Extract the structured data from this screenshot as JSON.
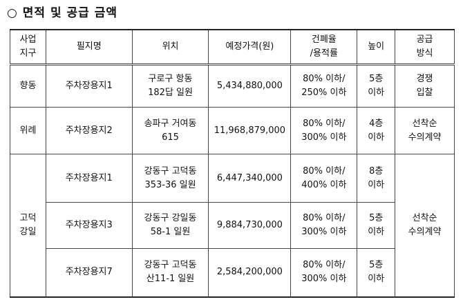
{
  "title": "○ 면적 및 공급 금액",
  "table": {
    "header": [
      "사업\n지구",
      "필지명",
      "위치",
      "예정가격(원)",
      "건폐율\n/용적률",
      "높이",
      "공급\n방식"
    ],
    "rows": [
      [
        "향동",
        "주차장용지1",
        "구로구 항동\n182답 일원",
        "5,434,880,000",
        "80% 이하/\n250% 이하",
        "5층\n이하",
        "경쟁\n입찰"
      ],
      [
        "위례",
        "주차장용지2",
        "송파구 거여동\n615",
        "11,968,879,000",
        "80% 이하/\n300% 이하",
        "4층\n이하",
        "선착순\n수의계약"
      ],
      [
        "고덕\n강일",
        "주차장용지1",
        "강동구 고덕동\n353-36 일원",
        "6,447,340,000",
        "80% 이하/\n400% 이하",
        "8층\n이하",
        "선착순\n수의계약"
      ],
      [
        "주차장용지3",
        "강동구 강일동\n58-1 일원",
        "9,884,730,000",
        "80% 이하/\n300% 이하",
        "5층\n이하"
      ],
      [
        "주차장용지7",
        "강동구 고덕동\n산11-1 일원",
        "2,584,200,000",
        "80% 이하/\n300% 이하",
        "5층\n이하"
      ]
    ]
  }
}
